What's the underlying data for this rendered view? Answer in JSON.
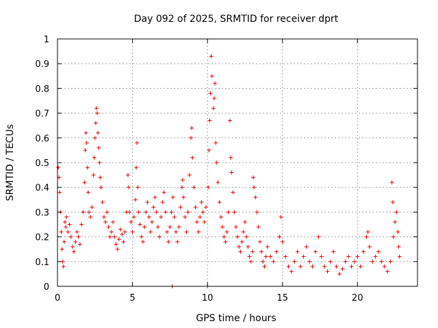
{
  "chart_data": {
    "type": "scatter",
    "title": "Day 092 of 2025, SRMTID for receiver dprt",
    "xlabel": "GPS time / hours",
    "ylabel": "SRMTID / TECUs",
    "xlim": [
      0,
      24
    ],
    "ylim": [
      0,
      1
    ],
    "xticks": [
      0,
      5,
      10,
      15,
      20
    ],
    "xtick_labels": [
      "0",
      "5",
      "10",
      "15",
      "20"
    ],
    "yticks": [
      0,
      0.1,
      0.2,
      0.3,
      0.4,
      0.5,
      0.6,
      0.7,
      0.8,
      0.9,
      1
    ],
    "ytick_labels": [
      "0",
      "0.1",
      "0.2",
      "0.3",
      "0.4",
      "0.5",
      "0.6",
      "0.7",
      "0.8",
      "0.9",
      "1"
    ],
    "grid": true,
    "marker": "plus",
    "color": "#e00000",
    "series": [
      {
        "name": "SRMTID",
        "points": [
          [
            0.05,
            0.48
          ],
          [
            0.1,
            0.44
          ],
          [
            0.15,
            0.38
          ],
          [
            0.2,
            0.3
          ],
          [
            0.25,
            0.22
          ],
          [
            0.3,
            0.15
          ],
          [
            0.35,
            0.1
          ],
          [
            0.4,
            0.08
          ],
          [
            0.45,
            0.18
          ],
          [
            0.5,
            0.26
          ],
          [
            0.55,
            0.24
          ],
          [
            0.6,
            0.28
          ],
          [
            0.7,
            0.22
          ],
          [
            0.8,
            0.25
          ],
          [
            0.9,
            0.2
          ],
          [
            1.0,
            0.16
          ],
          [
            1.1,
            0.14
          ],
          [
            1.2,
            0.18
          ],
          [
            1.3,
            0.22
          ],
          [
            1.4,
            0.2
          ],
          [
            1.5,
            0.17
          ],
          [
            1.6,
            0.25
          ],
          [
            1.7,
            0.3
          ],
          [
            1.8,
            0.42
          ],
          [
            1.85,
            0.55
          ],
          [
            1.9,
            0.62
          ],
          [
            1.95,
            0.58
          ],
          [
            2.0,
            0.48
          ],
          [
            2.05,
            0.38
          ],
          [
            2.1,
            0.3
          ],
          [
            2.2,
            0.28
          ],
          [
            2.3,
            0.32
          ],
          [
            2.4,
            0.45
          ],
          [
            2.45,
            0.52
          ],
          [
            2.5,
            0.6
          ],
          [
            2.55,
            0.66
          ],
          [
            2.6,
            0.72
          ],
          [
            2.65,
            0.7
          ],
          [
            2.7,
            0.62
          ],
          [
            2.75,
            0.56
          ],
          [
            2.8,
            0.5
          ],
          [
            2.85,
            0.44
          ],
          [
            2.9,
            0.4
          ],
          [
            3.0,
            0.34
          ],
          [
            3.1,
            0.28
          ],
          [
            3.2,
            0.26
          ],
          [
            3.3,
            0.3
          ],
          [
            3.4,
            0.24
          ],
          [
            3.5,
            0.2
          ],
          [
            3.6,
            0.22
          ],
          [
            3.7,
            0.26
          ],
          [
            3.8,
            0.2
          ],
          [
            3.9,
            0.17
          ],
          [
            4.0,
            0.15
          ],
          [
            4.1,
            0.19
          ],
          [
            4.2,
            0.23
          ],
          [
            4.3,
            0.21
          ],
          [
            4.4,
            0.18
          ],
          [
            4.5,
            0.22
          ],
          [
            4.6,
            0.3
          ],
          [
            4.7,
            0.45
          ],
          [
            4.75,
            0.4
          ],
          [
            4.8,
            0.3
          ],
          [
            4.9,
            0.26
          ],
          [
            5.0,
            0.22
          ],
          [
            5.1,
            0.28
          ],
          [
            5.2,
            0.35
          ],
          [
            5.25,
            0.48
          ],
          [
            5.3,
            0.58
          ],
          [
            5.35,
            0.4
          ],
          [
            5.4,
            0.3
          ],
          [
            5.5,
            0.25
          ],
          [
            5.6,
            0.2
          ],
          [
            5.7,
            0.18
          ],
          [
            5.8,
            0.24
          ],
          [
            5.9,
            0.3
          ],
          [
            6.0,
            0.34
          ],
          [
            6.1,
            0.28
          ],
          [
            6.2,
            0.22
          ],
          [
            6.3,
            0.26
          ],
          [
            6.4,
            0.32
          ],
          [
            6.5,
            0.36
          ],
          [
            6.6,
            0.3
          ],
          [
            6.7,
            0.24
          ],
          [
            6.8,
            0.2
          ],
          [
            6.9,
            0.28
          ],
          [
            7.0,
            0.34
          ],
          [
            7.1,
            0.38
          ],
          [
            7.2,
            0.3
          ],
          [
            7.3,
            0.22
          ],
          [
            7.4,
            0.18
          ],
          [
            7.5,
            0.24
          ],
          [
            7.6,
            0.3
          ],
          [
            7.65,
            0.0
          ],
          [
            7.7,
            0.36
          ],
          [
            7.8,
            0.28
          ],
          [
            7.9,
            0.22
          ],
          [
            8.0,
            0.18
          ],
          [
            8.1,
            0.24
          ],
          [
            8.2,
            0.32
          ],
          [
            8.3,
            0.4
          ],
          [
            8.35,
            0.43
          ],
          [
            8.4,
            0.36
          ],
          [
            8.5,
            0.28
          ],
          [
            8.6,
            0.22
          ],
          [
            8.7,
            0.3
          ],
          [
            8.8,
            0.45
          ],
          [
            8.9,
            0.6
          ],
          [
            8.95,
            0.64
          ],
          [
            9.0,
            0.52
          ],
          [
            9.1,
            0.4
          ],
          [
            9.2,
            0.32
          ],
          [
            9.3,
            0.26
          ],
          [
            9.4,
            0.22
          ],
          [
            9.5,
            0.28
          ],
          [
            9.6,
            0.34
          ],
          [
            9.7,
            0.3
          ],
          [
            9.8,
            0.26
          ],
          [
            9.9,
            0.32
          ],
          [
            10.0,
            0.0
          ],
          [
            10.05,
            0.4
          ],
          [
            10.1,
            0.55
          ],
          [
            10.15,
            0.67
          ],
          [
            10.2,
            0.78
          ],
          [
            10.25,
            0.93
          ],
          [
            10.3,
            0.85
          ],
          [
            10.4,
            0.72
          ],
          [
            10.45,
            0.76
          ],
          [
            10.5,
            0.82
          ],
          [
            10.55,
            0.58
          ],
          [
            10.6,
            0.5
          ],
          [
            10.7,
            0.42
          ],
          [
            10.8,
            0.34
          ],
          [
            10.9,
            0.28
          ],
          [
            11.0,
            0.24
          ],
          [
            11.1,
            0.2
          ],
          [
            11.2,
            0.18
          ],
          [
            11.3,
            0.22
          ],
          [
            11.4,
            0.3
          ],
          [
            11.5,
            0.67
          ],
          [
            11.55,
            0.52
          ],
          [
            11.6,
            0.46
          ],
          [
            11.7,
            0.38
          ],
          [
            11.8,
            0.3
          ],
          [
            11.9,
            0.24
          ],
          [
            12.0,
            0.2
          ],
          [
            12.1,
            0.16
          ],
          [
            12.2,
            0.14
          ],
          [
            12.3,
            0.18
          ],
          [
            12.4,
            0.22
          ],
          [
            12.5,
            0.26
          ],
          [
            12.6,
            0.2
          ],
          [
            12.7,
            0.16
          ],
          [
            12.8,
            0.12
          ],
          [
            12.9,
            0.1
          ],
          [
            13.0,
            0.14
          ],
          [
            13.05,
            0.44
          ],
          [
            13.1,
            0.4
          ],
          [
            13.2,
            0.36
          ],
          [
            13.3,
            0.3
          ],
          [
            13.4,
            0.24
          ],
          [
            13.5,
            0.18
          ],
          [
            13.6,
            0.14
          ],
          [
            13.7,
            0.1
          ],
          [
            13.8,
            0.08
          ],
          [
            13.9,
            0.12
          ],
          [
            14.0,
            0.16
          ],
          [
            14.2,
            0.12
          ],
          [
            14.4,
            0.1
          ],
          [
            14.6,
            0.14
          ],
          [
            14.8,
            0.2
          ],
          [
            14.9,
            0.28
          ],
          [
            15.0,
            0.18
          ],
          [
            15.2,
            0.12
          ],
          [
            15.4,
            0.08
          ],
          [
            15.6,
            0.06
          ],
          [
            15.8,
            0.1
          ],
          [
            16.0,
            0.14
          ],
          [
            16.2,
            0.08
          ],
          [
            16.4,
            0.12
          ],
          [
            16.6,
            0.16
          ],
          [
            16.8,
            0.1
          ],
          [
            17.0,
            0.08
          ],
          [
            17.2,
            0.14
          ],
          [
            17.4,
            0.2
          ],
          [
            17.6,
            0.12
          ],
          [
            17.8,
            0.08
          ],
          [
            18.0,
            0.06
          ],
          [
            18.2,
            0.1
          ],
          [
            18.4,
            0.14
          ],
          [
            18.6,
            0.08
          ],
          [
            18.8,
            0.05
          ],
          [
            19.0,
            0.07
          ],
          [
            19.2,
            0.1
          ],
          [
            19.4,
            0.12
          ],
          [
            19.6,
            0.08
          ],
          [
            19.8,
            0.1
          ],
          [
            20.0,
            0.12
          ],
          [
            20.2,
            0.08
          ],
          [
            20.4,
            0.14
          ],
          [
            20.6,
            0.2
          ],
          [
            20.7,
            0.22
          ],
          [
            20.8,
            0.16
          ],
          [
            21.0,
            0.1
          ],
          [
            21.2,
            0.12
          ],
          [
            21.4,
            0.14
          ],
          [
            21.6,
            0.1
          ],
          [
            21.8,
            0.08
          ],
          [
            22.0,
            0.06
          ],
          [
            22.2,
            0.1
          ],
          [
            22.3,
            0.42
          ],
          [
            22.35,
            0.34
          ],
          [
            22.4,
            0.2
          ],
          [
            22.5,
            0.26
          ],
          [
            22.6,
            0.3
          ],
          [
            22.7,
            0.22
          ],
          [
            22.75,
            0.16
          ],
          [
            22.8,
            0.12
          ]
        ]
      }
    ]
  }
}
